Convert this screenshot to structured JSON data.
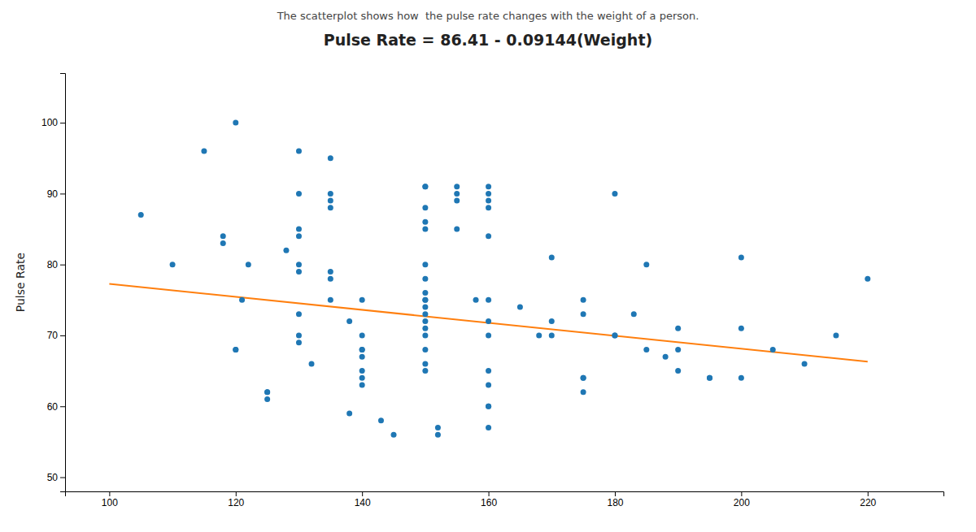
{
  "chart_data": {
    "type": "scatter",
    "title": "Pulse Rate = 86.41 - 0.09144(Weight)",
    "subtitle": "The scatterplot shows how  the pulse rate changes with the weight of a person.",
    "ylabel": "Pulse Rate",
    "xlim": [
      93,
      232
    ],
    "ylim": [
      48,
      107
    ],
    "xticks": [
      100,
      120,
      140,
      160,
      180,
      200,
      220
    ],
    "yticks": [
      50,
      60,
      70,
      80,
      90,
      100
    ],
    "grid": false,
    "series": [
      {
        "type": "scatter",
        "marker": "circle",
        "x": [
          105,
          110,
          115,
          118,
          118,
          120,
          120,
          120,
          121,
          122,
          125,
          125,
          125,
          128,
          130,
          130,
          130,
          130,
          130,
          130,
          130,
          130,
          130,
          132,
          135,
          135,
          135,
          135,
          135,
          135,
          135,
          138,
          138,
          140,
          140,
          140,
          140,
          140,
          140,
          140,
          140,
          143,
          145,
          150,
          150,
          150,
          150,
          150,
          150,
          150,
          150,
          150,
          150,
          150,
          150,
          150,
          150,
          150,
          150,
          150,
          150,
          152,
          152,
          155,
          155,
          155,
          155,
          158,
          160,
          160,
          160,
          160,
          160,
          160,
          160,
          160,
          160,
          160,
          160,
          160,
          160,
          165,
          168,
          170,
          170,
          170,
          175,
          175,
          175,
          175,
          175,
          180,
          180,
          180,
          183,
          185,
          185,
          188,
          190,
          190,
          190,
          195,
          195,
          200,
          200,
          200,
          205,
          210,
          215,
          220
        ],
        "values": [
          87,
          80,
          96,
          84,
          83,
          100,
          68,
          68,
          75,
          80,
          62,
          62,
          61,
          82,
          96,
          90,
          85,
          84,
          80,
          79,
          73,
          70,
          69,
          66,
          95,
          90,
          89,
          88,
          79,
          78,
          75,
          72,
          59,
          75,
          70,
          68,
          68,
          67,
          65,
          64,
          63,
          58,
          56,
          91,
          91,
          88,
          86,
          85,
          80,
          78,
          76,
          75,
          75,
          74,
          73,
          72,
          71,
          70,
          68,
          66,
          65,
          57,
          56,
          91,
          90,
          89,
          85,
          75,
          91,
          90,
          89,
          88,
          84,
          75,
          72,
          70,
          65,
          63,
          60,
          60,
          57,
          74,
          70,
          81,
          72,
          70,
          75,
          73,
          64,
          64,
          62,
          90,
          70,
          70,
          73,
          80,
          68,
          67,
          71,
          68,
          65,
          64,
          64,
          81,
          71,
          64,
          68,
          66,
          70,
          78
        ]
      },
      {
        "type": "line",
        "line_style": "solid",
        "x": [
          100,
          220
        ],
        "values": [
          77.266,
          66.2932
        ]
      }
    ]
  }
}
